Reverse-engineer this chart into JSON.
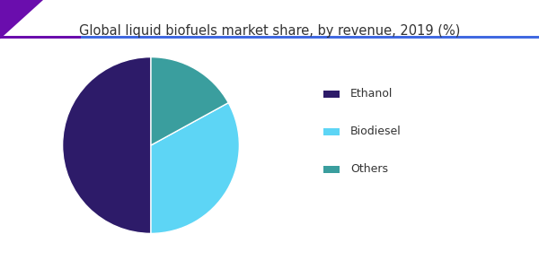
{
  "title": "Global liquid biofuels market share, by revenue, 2019 (%)",
  "title_fontsize": 10.5,
  "background_color": "#ffffff",
  "title_color": "#333333",
  "pie_values": [
    50,
    33,
    17
  ],
  "pie_colors": [
    "#2d1b69",
    "#5dd5f5",
    "#3a9e9e"
  ],
  "legend_labels": [
    "Ethanol",
    "Biodiesel",
    "Others"
  ],
  "legend_text_color": "#333333",
  "startangle": 90,
  "figsize": [
    6.0,
    3.0
  ],
  "dpi": 100,
  "header_line_color": "#6a0dad",
  "header_line_color2": "#00bfff",
  "corner_color": "#6a0dad"
}
